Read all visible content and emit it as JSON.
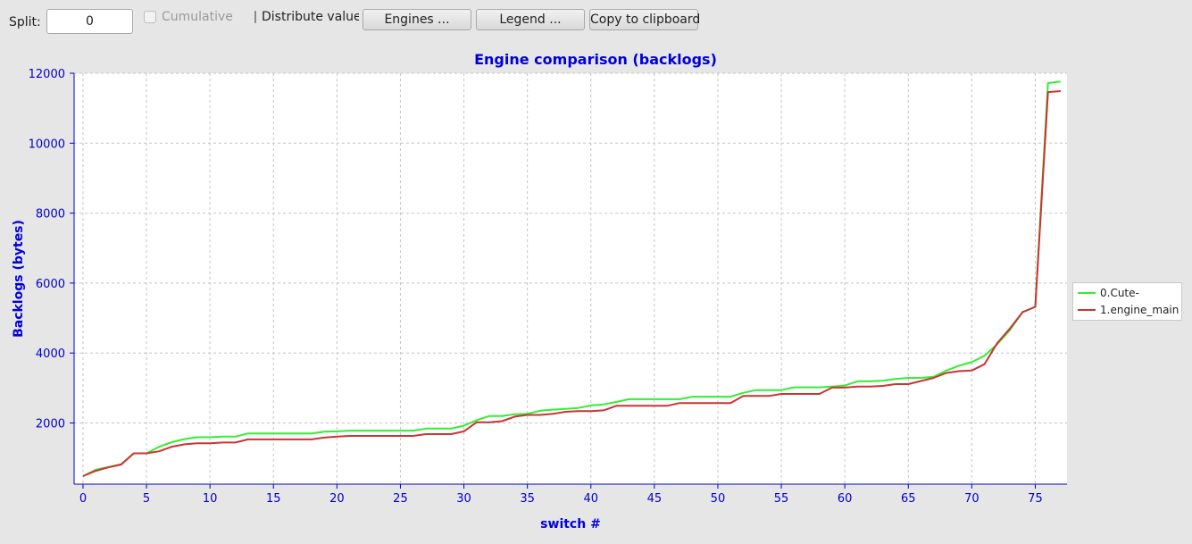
{
  "toolbar": {
    "split_label": "Split:",
    "split_value": "0",
    "cumulative_label": "Cumulative",
    "distribute_label": "Distribute values",
    "engines_button": "Engines ...",
    "legend_button": "Legend ...",
    "copy_button": "Copy to clipboard"
  },
  "chart_data": {
    "type": "line",
    "title": "Engine comparison (backlogs)",
    "xlabel": "switch #",
    "ylabel": "Backlogs (bytes)",
    "xlim": [
      -0.7,
      77.5
    ],
    "ylim": [
      250,
      12000
    ],
    "x_ticks": [
      0,
      5,
      10,
      15,
      20,
      25,
      30,
      35,
      40,
      45,
      50,
      55,
      60,
      65,
      70,
      75
    ],
    "y_ticks": [
      2000,
      4000,
      6000,
      8000,
      10000,
      12000
    ],
    "grid": true,
    "legend_position": "right",
    "series": [
      {
        "name": "0.Cute-",
        "color": "#33ee33",
        "x": [
          0,
          1,
          2,
          3,
          4,
          5,
          6,
          7,
          8,
          9,
          10,
          11,
          12,
          13,
          14,
          15,
          16,
          17,
          18,
          19,
          20,
          21,
          22,
          23,
          24,
          25,
          26,
          27,
          28,
          29,
          30,
          31,
          32,
          33,
          34,
          35,
          36,
          37,
          38,
          39,
          40,
          41,
          42,
          43,
          44,
          45,
          46,
          47,
          48,
          49,
          50,
          51,
          52,
          53,
          54,
          55,
          56,
          57,
          58,
          59,
          60,
          61,
          62,
          63,
          64,
          65,
          66,
          67,
          68,
          69,
          70,
          71,
          72,
          73,
          74,
          75,
          76,
          77
        ],
        "values": [
          480,
          660,
          740,
          820,
          1130,
          1130,
          1320,
          1450,
          1540,
          1590,
          1590,
          1610,
          1610,
          1700,
          1700,
          1700,
          1700,
          1700,
          1700,
          1750,
          1760,
          1780,
          1780,
          1780,
          1780,
          1780,
          1780,
          1840,
          1840,
          1840,
          1920,
          2080,
          2200,
          2200,
          2250,
          2260,
          2350,
          2380,
          2400,
          2430,
          2500,
          2530,
          2600,
          2680,
          2680,
          2680,
          2680,
          2680,
          2750,
          2750,
          2750,
          2750,
          2860,
          2940,
          2940,
          2940,
          3020,
          3020,
          3020,
          3040,
          3070,
          3190,
          3190,
          3210,
          3260,
          3290,
          3290,
          3320,
          3500,
          3640,
          3740,
          3920,
          4250,
          4650,
          5170,
          5320,
          11720,
          11760
        ]
      },
      {
        "name": "1.engine_main",
        "color": "#cc3333",
        "x": [
          0,
          1,
          2,
          3,
          4,
          5,
          6,
          7,
          8,
          9,
          10,
          11,
          12,
          13,
          14,
          15,
          16,
          17,
          18,
          19,
          20,
          21,
          22,
          23,
          24,
          25,
          26,
          27,
          28,
          29,
          30,
          31,
          32,
          33,
          34,
          35,
          36,
          37,
          38,
          39,
          40,
          41,
          42,
          43,
          44,
          45,
          46,
          47,
          48,
          49,
          50,
          51,
          52,
          53,
          54,
          55,
          56,
          57,
          58,
          59,
          60,
          61,
          62,
          63,
          64,
          65,
          66,
          67,
          68,
          69,
          70,
          71,
          72,
          73,
          74,
          75,
          76,
          77
        ],
        "values": [
          480,
          630,
          730,
          810,
          1130,
          1130,
          1190,
          1320,
          1390,
          1420,
          1420,
          1440,
          1440,
          1530,
          1530,
          1530,
          1530,
          1530,
          1530,
          1580,
          1610,
          1630,
          1630,
          1630,
          1630,
          1630,
          1630,
          1680,
          1680,
          1680,
          1760,
          2020,
          2020,
          2050,
          2180,
          2230,
          2230,
          2260,
          2320,
          2340,
          2340,
          2360,
          2490,
          2490,
          2490,
          2490,
          2490,
          2570,
          2570,
          2570,
          2570,
          2570,
          2770,
          2770,
          2770,
          2830,
          2830,
          2830,
          2830,
          3010,
          3010,
          3040,
          3040,
          3060,
          3110,
          3110,
          3200,
          3290,
          3430,
          3480,
          3500,
          3680,
          4280,
          4700,
          5170,
          5320,
          11460,
          11490
        ]
      }
    ]
  }
}
